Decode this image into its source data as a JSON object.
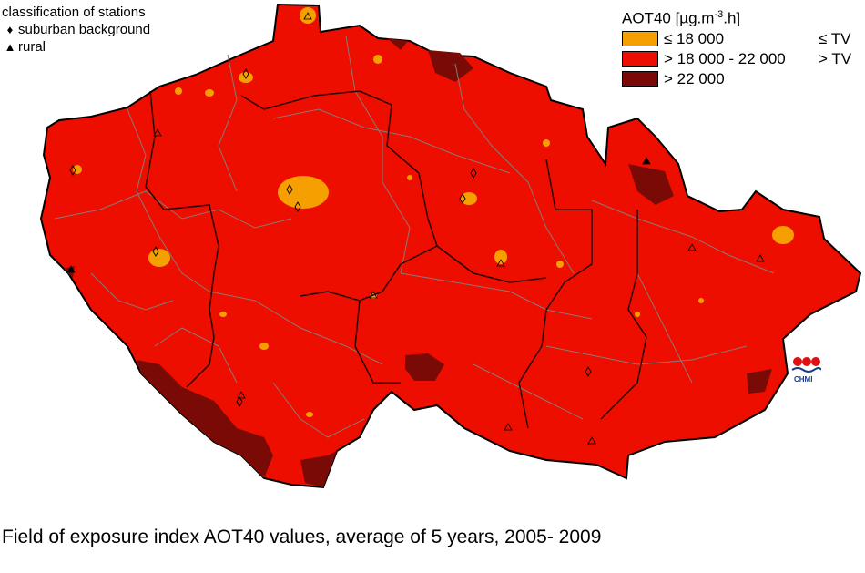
{
  "map": {
    "legend_left": {
      "title": "classification of stations",
      "items": [
        {
          "symbol": "diamond",
          "glyph": "♦",
          "label": "suburban background"
        },
        {
          "symbol": "triangle",
          "glyph": "▲",
          "label": "rural"
        }
      ]
    },
    "legend_right": {
      "title_main": "AOT40 [µg.m",
      "title_sup": "-3",
      "title_end": ".h]",
      "classes": [
        {
          "range": "≤ 18 000",
          "compare": "≤ TV",
          "color": "#f5a000"
        },
        {
          "range": "> 18 000 - 22 000",
          "compare": "> TV",
          "color": "#ee0e00"
        },
        {
          "range": "> 22 000",
          "compare": "",
          "color": "#7a0a06"
        }
      ]
    },
    "logo_text": "CHMI",
    "caption": "Field of exposure index AOT40 values, average of 5 years, 2005- 2009",
    "colors": {
      "low": "#f5a000",
      "mid": "#ee0e00",
      "high": "#7a0a06",
      "district_border": "#8a7878",
      "region_border": "#2a0000"
    }
  }
}
